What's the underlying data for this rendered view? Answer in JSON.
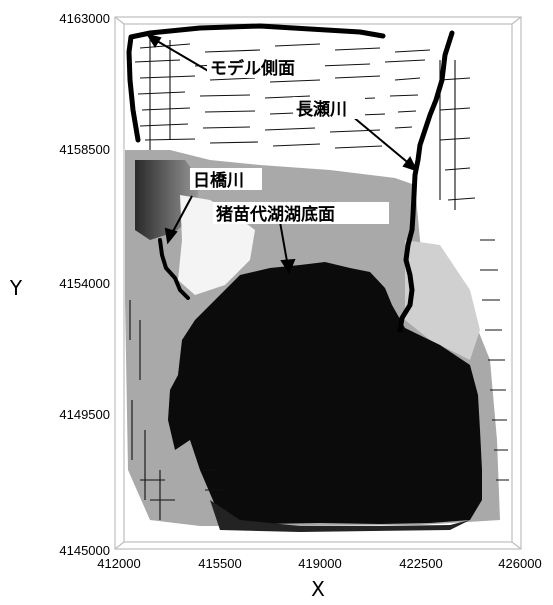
{
  "figure": {
    "x_axis_label": "X",
    "y_axis_label": "Y",
    "x_ticks": [
      "412000",
      "415500",
      "419000",
      "422500",
      "426000"
    ],
    "y_ticks": [
      "4163000",
      "4158500",
      "4154000",
      "4149500",
      "4145000"
    ],
    "annotations": {
      "model_side": "モデル側面",
      "nagase_river": "長瀬川",
      "nippashi_river": "日橋川",
      "lake_bottom": "猪苗代湖湖底面"
    }
  },
  "colors": {
    "lake": "#0b0b0b",
    "high_terrain": "#6e6e6e",
    "mid_terrain": "#a8a8a8",
    "low_terrain": "#d2d2d2",
    "flat_white": "#ffffff",
    "river": "#000000"
  }
}
